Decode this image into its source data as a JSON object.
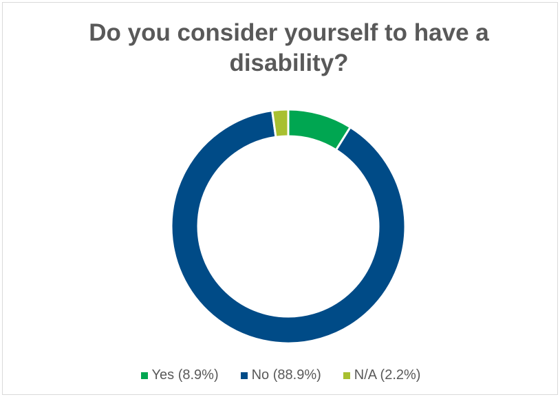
{
  "chart_data": {
    "type": "pie",
    "style": "donut",
    "title": "Do you consider yourself to have a disability?",
    "categories": [
      "Yes (8.9%)",
      "No (88.9%)",
      "N/A (2.2%)"
    ],
    "values": [
      8.9,
      88.9,
      2.2
    ],
    "colors": [
      "#00a651",
      "#004b87",
      "#a8c030"
    ],
    "legend_position": "bottom"
  }
}
